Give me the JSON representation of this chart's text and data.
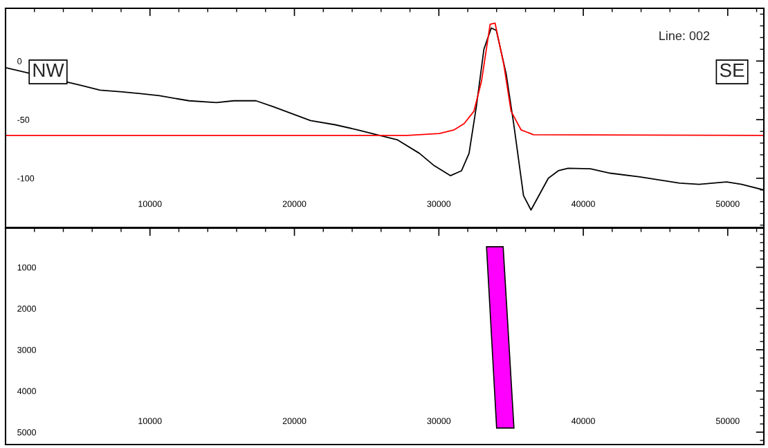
{
  "chart_data": [
    {
      "type": "line",
      "xlim": [
        0,
        52500
      ],
      "ylim": [
        -142,
        45
      ],
      "xticks": [
        10000,
        20000,
        30000,
        40000,
        50000
      ],
      "yticks": [
        0,
        -50,
        -100
      ],
      "annotations": [
        "Line: 002",
        "NW",
        "SE"
      ],
      "series": [
        {
          "color": "#000000",
          "x": [
            0,
            5160,
            6540,
            8080,
            9450,
            10650,
            12710,
            14600,
            15800,
            17340,
            18540,
            21110,
            22830,
            24370,
            26090,
            27110,
            28660,
            29690,
            30800,
            31570,
            32090,
            32600,
            33120,
            33630,
            33980,
            34660,
            35180,
            35860,
            36380,
            37580,
            38270,
            38950,
            40490,
            41870,
            43920,
            46670,
            48030,
            49920,
            50960,
            52500
          ],
          "values": [
            -5.7,
            -20.5,
            -24.8,
            -26.3,
            -27.9,
            -29.6,
            -33.9,
            -35.4,
            -33.9,
            -33.9,
            -39,
            -50.8,
            -54.4,
            -58.7,
            -64,
            -67.1,
            -78.8,
            -89.4,
            -97.8,
            -93.6,
            -78.8,
            -38.6,
            10.2,
            28.2,
            26.1,
            -11,
            -53.4,
            -114.8,
            -127.1,
            -100,
            -93.6,
            -91.5,
            -91.9,
            -95.7,
            -98.9,
            -104.2,
            -105.2,
            -103.1,
            -105.2,
            -110
          ]
        },
        {
          "color": "#ff0000",
          "x": [
            0,
            27800,
            30030,
            31060,
            31750,
            32430,
            32950,
            33550,
            33890,
            34490,
            35000,
            35690,
            36550,
            52500
          ],
          "values": [
            -63.5,
            -63.5,
            -61.9,
            -58.7,
            -53.4,
            -42.8,
            -17.4,
            31.4,
            32.4,
            -2.6,
            -42.8,
            -58.7,
            -62.9,
            -63.5
          ]
        }
      ]
    },
    {
      "type": "area",
      "xlim": [
        0,
        52500
      ],
      "ylim": [
        5300,
        50
      ],
      "xticks": [
        10000,
        20000,
        30000,
        40000,
        50000
      ],
      "yticks": [
        1000,
        2000,
        3000,
        4000,
        5000
      ],
      "series": [
        {
          "color": "#ff00ff",
          "x": [
            33300,
            34450,
            35200,
            34000
          ],
          "values": [
            500,
            500,
            4900,
            4900
          ]
        }
      ]
    }
  ]
}
